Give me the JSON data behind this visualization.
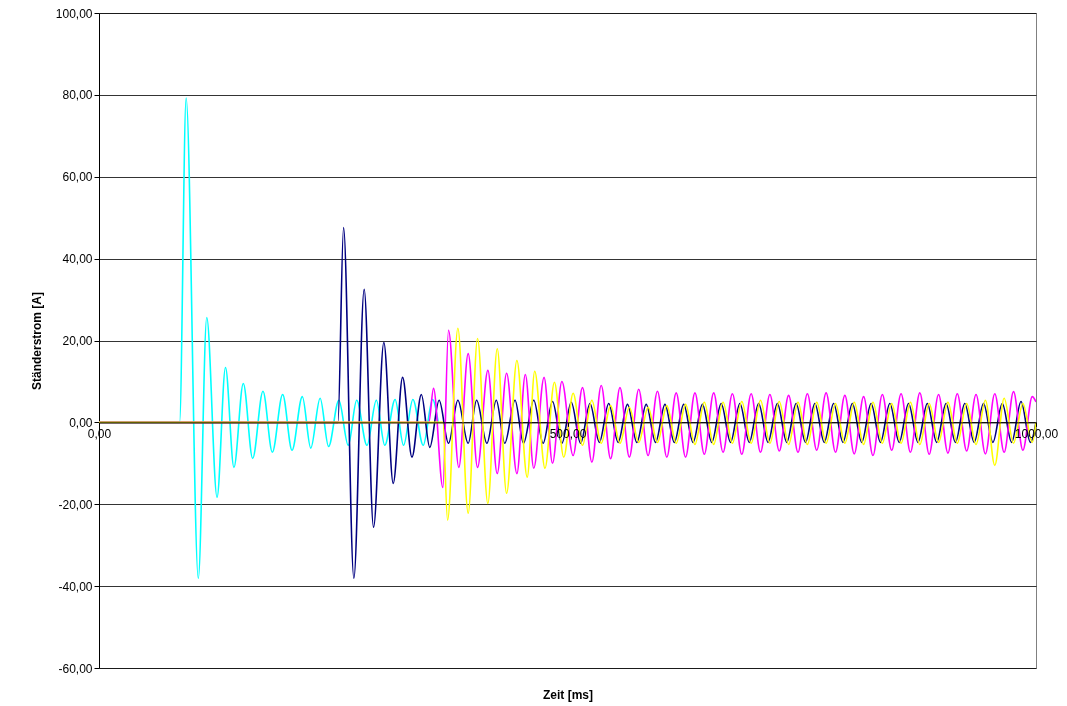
{
  "chart_data": {
    "type": "line",
    "xlabel": "Zeit [ms]",
    "ylabel": "Ständerstrom [A]",
    "xlim": [
      0,
      1000
    ],
    "xticks": [
      {
        "value": 0,
        "label": "0,00"
      },
      {
        "value": 500,
        "label": "500,00"
      },
      {
        "value": 1000,
        "label": "1000,00"
      }
    ],
    "ylim": [
      -60,
      100
    ],
    "yticks": [
      {
        "value": -60,
        "label": "-60,00"
      },
      {
        "value": -40,
        "label": "-40,00"
      },
      {
        "value": -20,
        "label": "-20,00"
      },
      {
        "value": 0,
        "label": "0,00"
      },
      {
        "value": 20,
        "label": "20,00"
      },
      {
        "value": 40,
        "label": "40,00"
      },
      {
        "value": 60,
        "label": "60,00"
      },
      {
        "value": 80,
        "label": "80,00"
      },
      {
        "value": 100,
        "label": "100,00"
      }
    ],
    "grid": "y",
    "marker": "none",
    "line_style": "solid",
    "series": [
      {
        "color": "#00ffff",
        "x": [
          0,
          86,
          93,
          106,
          115,
          126,
          135,
          144,
          154,
          164,
          175,
          185,
          196,
          206,
          217,
          226,
          236,
          245,
          256,
          266,
          275,
          286,
          296,
          305,
          316,
          325,
          335,
          346,
          356,
          362
        ],
        "values": [
          0,
          0,
          79.2,
          -38.1,
          25.6,
          -18.3,
          13.4,
          -11,
          9.5,
          -8.8,
          7.6,
          -7.3,
          6.8,
          -6.8,
          6.3,
          -6.3,
          5.9,
          -5.9,
          5.4,
          -5.6,
          5.4,
          -5.6,
          5.4,
          -5.6,
          5.6,
          -5.6,
          5.6,
          -5.6,
          5.6,
          0
        ]
      },
      {
        "color": "#000080",
        "x": [
          0,
          255,
          261,
          272,
          283,
          293,
          304,
          314,
          324,
          334,
          344,
          353,
          363,
          373,
          383,
          394,
          403,
          414,
          424,
          433,
          444,
          453,
          464,
          474,
          484,
          494,
          504,
          514,
          524,
          534,
          544,
          554,
          564,
          574,
          584,
          594,
          604,
          614,
          624,
          634,
          644,
          654,
          664,
          674,
          684,
          694,
          704,
          714,
          724,
          734,
          744,
          754,
          764,
          774,
          784,
          794,
          804,
          814,
          824,
          834,
          844,
          854,
          864,
          874,
          884,
          894,
          904,
          914,
          924,
          934,
          944,
          954,
          964,
          974,
          984,
          994,
          1000
        ],
        "values": [
          0,
          0,
          47.6,
          -38.1,
          32.5,
          -25.6,
          19.5,
          -14.9,
          11,
          -8.5,
          6.8,
          -6.1,
          5.4,
          -5.1,
          5.4,
          -5.1,
          5.4,
          -5.1,
          5.4,
          -5.1,
          5.4,
          -5.1,
          5.4,
          -5.1,
          5.1,
          -5.1,
          4.9,
          -5.1,
          4.6,
          -4.9,
          4.6,
          -4.9,
          4.4,
          -4.9,
          4.4,
          -4.9,
          4.4,
          -4.9,
          4.4,
          -4.9,
          4.4,
          -4.9,
          4.6,
          -4.9,
          4.6,
          -4.9,
          4.6,
          -4.9,
          4.6,
          -4.9,
          4.6,
          -4.9,
          4.6,
          -4.9,
          4.6,
          -4.9,
          4.6,
          -4.9,
          4.6,
          -4.9,
          4.6,
          -4.9,
          4.6,
          -4.9,
          4.6,
          -4.9,
          4.6,
          -4.9,
          4.6,
          -4.9,
          4.6,
          -4.9,
          4.6,
          -4.9,
          5.1,
          -4.9,
          0
        ]
      },
      {
        "color": "#ff00ff",
        "x": [
          0,
          352,
          357,
          367,
          373,
          384,
          394,
          404,
          415,
          425,
          435,
          446,
          455,
          464,
          475,
          484,
          494,
          506,
          516,
          526,
          536,
          546,
          556,
          566,
          576,
          586,
          596,
          606,
          616,
          626,
          636,
          646,
          656,
          666,
          676,
          686,
          696,
          706,
          716,
          726,
          736,
          746,
          756,
          766,
          776,
          786,
          796,
          806,
          816,
          826,
          836,
          846,
          856,
          866,
          876,
          886,
          896,
          906,
          916,
          926,
          936,
          946,
          956,
          966,
          976,
          986,
          996,
          1000
        ],
        "values": [
          0,
          0,
          8.3,
          -15.9,
          22.5,
          -11,
          16.8,
          -11,
          12.7,
          -12.5,
          12,
          -12.5,
          11.7,
          -11.2,
          11,
          -10,
          10,
          -8.1,
          8.5,
          -9.7,
          9,
          -8.9,
          8.5,
          -8.5,
          8.1,
          -8.1,
          7.6,
          -8.5,
          7.2,
          -8.5,
          7.2,
          -7.8,
          7.2,
          -7.3,
          7,
          -7.8,
          7,
          -7.3,
          6.8,
          -7,
          6.6,
          -7.3,
          7,
          -6.8,
          7.2,
          -7.3,
          6.6,
          -7.7,
          6.3,
          -8.1,
          6.8,
          -6.8,
          7,
          -7.3,
          7.2,
          -7.8,
          6.8,
          -7.5,
          7,
          -7,
          6.8,
          -7.7,
          7,
          -7.3,
          7.5,
          -6.8,
          6.3,
          5
        ]
      },
      {
        "color": "#ffff00",
        "x": [
          0,
          367,
          372,
          383,
          394,
          404,
          415,
          425,
          435,
          446,
          457,
          465,
          476,
          486,
          496,
          506,
          516,
          526,
          536,
          546,
          556,
          566,
          576,
          586,
          596,
          606,
          616,
          626,
          636,
          646,
          656,
          666,
          676,
          686,
          696,
          706,
          716,
          726,
          736,
          746,
          756,
          766,
          776,
          786,
          796,
          806,
          816,
          826,
          836,
          846,
          856,
          866,
          876,
          886,
          896,
          906,
          916,
          926,
          936,
          946,
          956,
          966,
          976,
          986,
          996,
          1000
        ],
        "values": [
          0,
          0,
          -23.9,
          23,
          -22.2,
          20.5,
          -19.8,
          18,
          -17.3,
          15.1,
          -13.4,
          12.5,
          -11.2,
          9.8,
          -8.5,
          7.1,
          -5.6,
          5.4,
          -5.1,
          4.1,
          -5.1,
          3.7,
          -4.9,
          3.7,
          -4.9,
          4.1,
          -5.1,
          4.4,
          -5.4,
          4.9,
          -5.4,
          4.9,
          -5.1,
          5.1,
          -5.1,
          5.4,
          -5.1,
          5.1,
          -5.4,
          4.9,
          -5.4,
          4.9,
          -5.1,
          4.6,
          -5.1,
          4.9,
          -5.4,
          4.9,
          -5.1,
          4.6,
          -5.1,
          4.9,
          -5.4,
          4.6,
          -4.9,
          4.9,
          -5.1,
          4.6,
          -5.4,
          5.4,
          -10.5,
          5.9,
          -5.1,
          4.6,
          -4.9,
          0
        ]
      }
    ]
  }
}
